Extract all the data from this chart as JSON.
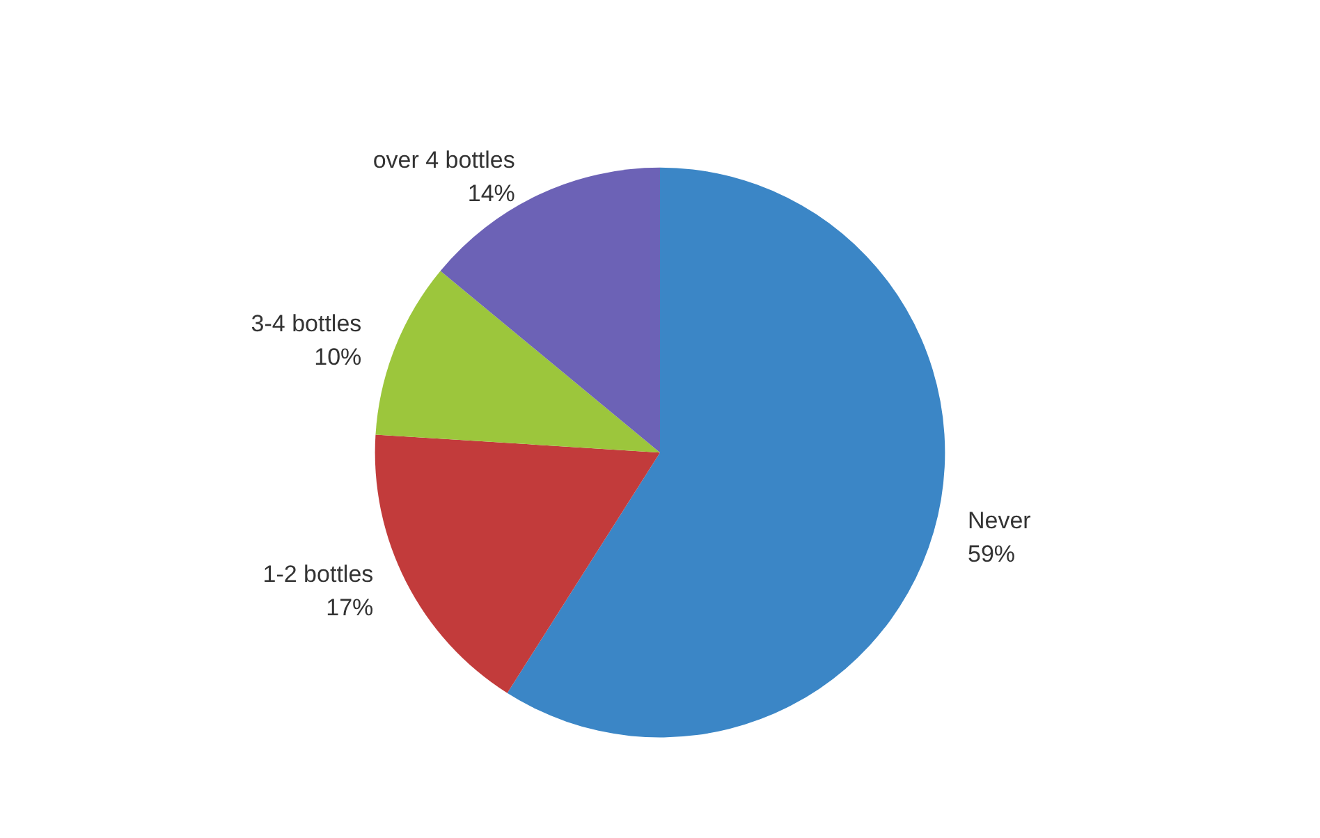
{
  "chart_data": {
    "type": "pie",
    "categories": [
      "Never",
      "1-2 bottles",
      "3-4 bottles",
      "over 4 bottles"
    ],
    "values": [
      59,
      17,
      10,
      14
    ],
    "value_labels": [
      "59%",
      "17%",
      "10%",
      "14%"
    ],
    "colors": [
      "#3b86c6",
      "#c23b3b",
      "#9cc63c",
      "#6c62b6"
    ]
  }
}
